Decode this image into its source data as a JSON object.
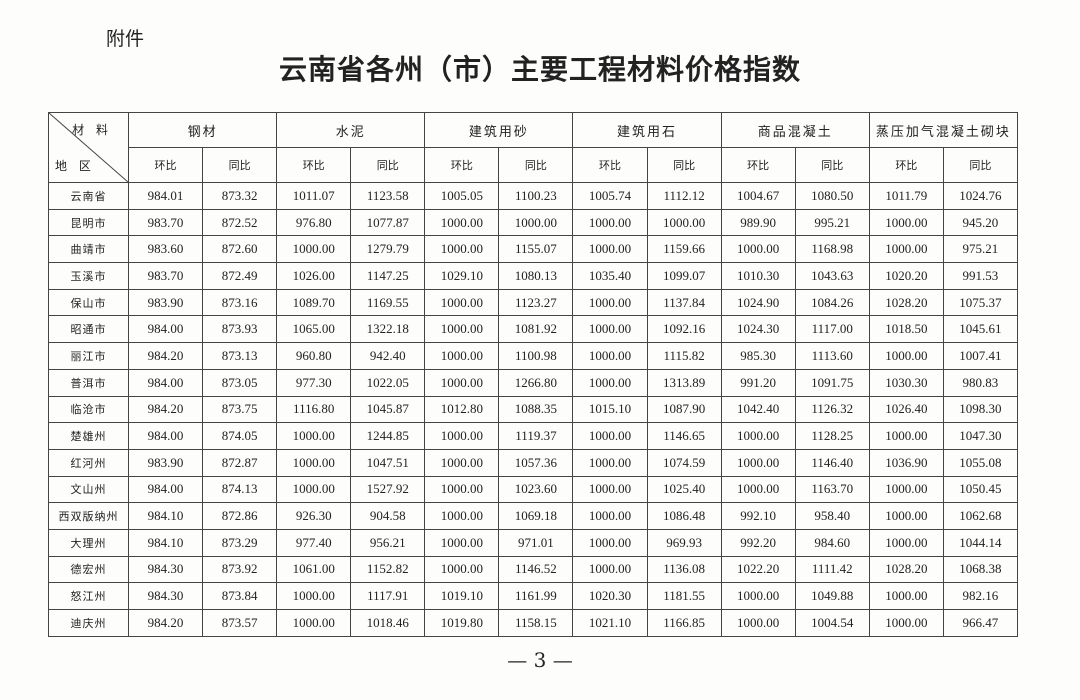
{
  "attachment_label": "附件",
  "title": "云南省各州（市）主要工程材料价格指数",
  "page_number": "— 3 —",
  "table": {
    "corner_material": "材 料",
    "corner_region": "地 区",
    "materials": [
      "钢材",
      "水泥",
      "建筑用砂",
      "建筑用石",
      "商品混凝土",
      "蒸压加气混凝土砌块"
    ],
    "sub_headers": [
      "环比",
      "同比"
    ],
    "rows": [
      {
        "region": "云南省",
        "values": [
          "984.01",
          "873.32",
          "1011.07",
          "1123.58",
          "1005.05",
          "1100.23",
          "1005.74",
          "1112.12",
          "1004.67",
          "1080.50",
          "1011.79",
          "1024.76"
        ]
      },
      {
        "region": "昆明市",
        "values": [
          "983.70",
          "872.52",
          "976.80",
          "1077.87",
          "1000.00",
          "1000.00",
          "1000.00",
          "1000.00",
          "989.90",
          "995.21",
          "1000.00",
          "945.20"
        ]
      },
      {
        "region": "曲靖市",
        "values": [
          "983.60",
          "872.60",
          "1000.00",
          "1279.79",
          "1000.00",
          "1155.07",
          "1000.00",
          "1159.66",
          "1000.00",
          "1168.98",
          "1000.00",
          "975.21"
        ]
      },
      {
        "region": "玉溪市",
        "values": [
          "983.70",
          "872.49",
          "1026.00",
          "1147.25",
          "1029.10",
          "1080.13",
          "1035.40",
          "1099.07",
          "1010.30",
          "1043.63",
          "1020.20",
          "991.53"
        ]
      },
      {
        "region": "保山市",
        "values": [
          "983.90",
          "873.16",
          "1089.70",
          "1169.55",
          "1000.00",
          "1123.27",
          "1000.00",
          "1137.84",
          "1024.90",
          "1084.26",
          "1028.20",
          "1075.37"
        ]
      },
      {
        "region": "昭通市",
        "values": [
          "984.00",
          "873.93",
          "1065.00",
          "1322.18",
          "1000.00",
          "1081.92",
          "1000.00",
          "1092.16",
          "1024.30",
          "1117.00",
          "1018.50",
          "1045.61"
        ]
      },
      {
        "region": "丽江市",
        "values": [
          "984.20",
          "873.13",
          "960.80",
          "942.40",
          "1000.00",
          "1100.98",
          "1000.00",
          "1115.82",
          "985.30",
          "1113.60",
          "1000.00",
          "1007.41"
        ]
      },
      {
        "region": "普洱市",
        "values": [
          "984.00",
          "873.05",
          "977.30",
          "1022.05",
          "1000.00",
          "1266.80",
          "1000.00",
          "1313.89",
          "991.20",
          "1091.75",
          "1030.30",
          "980.83"
        ]
      },
      {
        "region": "临沧市",
        "values": [
          "984.20",
          "873.75",
          "1116.80",
          "1045.87",
          "1012.80",
          "1088.35",
          "1015.10",
          "1087.90",
          "1042.40",
          "1126.32",
          "1026.40",
          "1098.30"
        ]
      },
      {
        "region": "楚雄州",
        "values": [
          "984.00",
          "874.05",
          "1000.00",
          "1244.85",
          "1000.00",
          "1119.37",
          "1000.00",
          "1146.65",
          "1000.00",
          "1128.25",
          "1000.00",
          "1047.30"
        ]
      },
      {
        "region": "红河州",
        "values": [
          "983.90",
          "872.87",
          "1000.00",
          "1047.51",
          "1000.00",
          "1057.36",
          "1000.00",
          "1074.59",
          "1000.00",
          "1146.40",
          "1036.90",
          "1055.08"
        ]
      },
      {
        "region": "文山州",
        "values": [
          "984.00",
          "874.13",
          "1000.00",
          "1527.92",
          "1000.00",
          "1023.60",
          "1000.00",
          "1025.40",
          "1000.00",
          "1163.70",
          "1000.00",
          "1050.45"
        ]
      },
      {
        "region": "西双版纳州",
        "values": [
          "984.10",
          "872.86",
          "926.30",
          "904.58",
          "1000.00",
          "1069.18",
          "1000.00",
          "1086.48",
          "992.10",
          "958.40",
          "1000.00",
          "1062.68"
        ]
      },
      {
        "region": "大理州",
        "values": [
          "984.10",
          "873.29",
          "977.40",
          "956.21",
          "1000.00",
          "971.01",
          "1000.00",
          "969.93",
          "992.20",
          "984.60",
          "1000.00",
          "1044.14"
        ]
      },
      {
        "region": "德宏州",
        "values": [
          "984.30",
          "873.92",
          "1061.00",
          "1152.82",
          "1000.00",
          "1146.52",
          "1000.00",
          "1136.08",
          "1022.20",
          "1111.42",
          "1028.20",
          "1068.38"
        ]
      },
      {
        "region": "怒江州",
        "values": [
          "984.30",
          "873.84",
          "1000.00",
          "1117.91",
          "1019.10",
          "1161.99",
          "1020.30",
          "1181.55",
          "1000.00",
          "1049.88",
          "1000.00",
          "982.16"
        ]
      },
      {
        "region": "迪庆州",
        "values": [
          "984.20",
          "873.57",
          "1000.00",
          "1018.46",
          "1019.80",
          "1158.15",
          "1021.10",
          "1166.85",
          "1000.00",
          "1004.54",
          "1000.00",
          "966.47"
        ]
      }
    ]
  }
}
